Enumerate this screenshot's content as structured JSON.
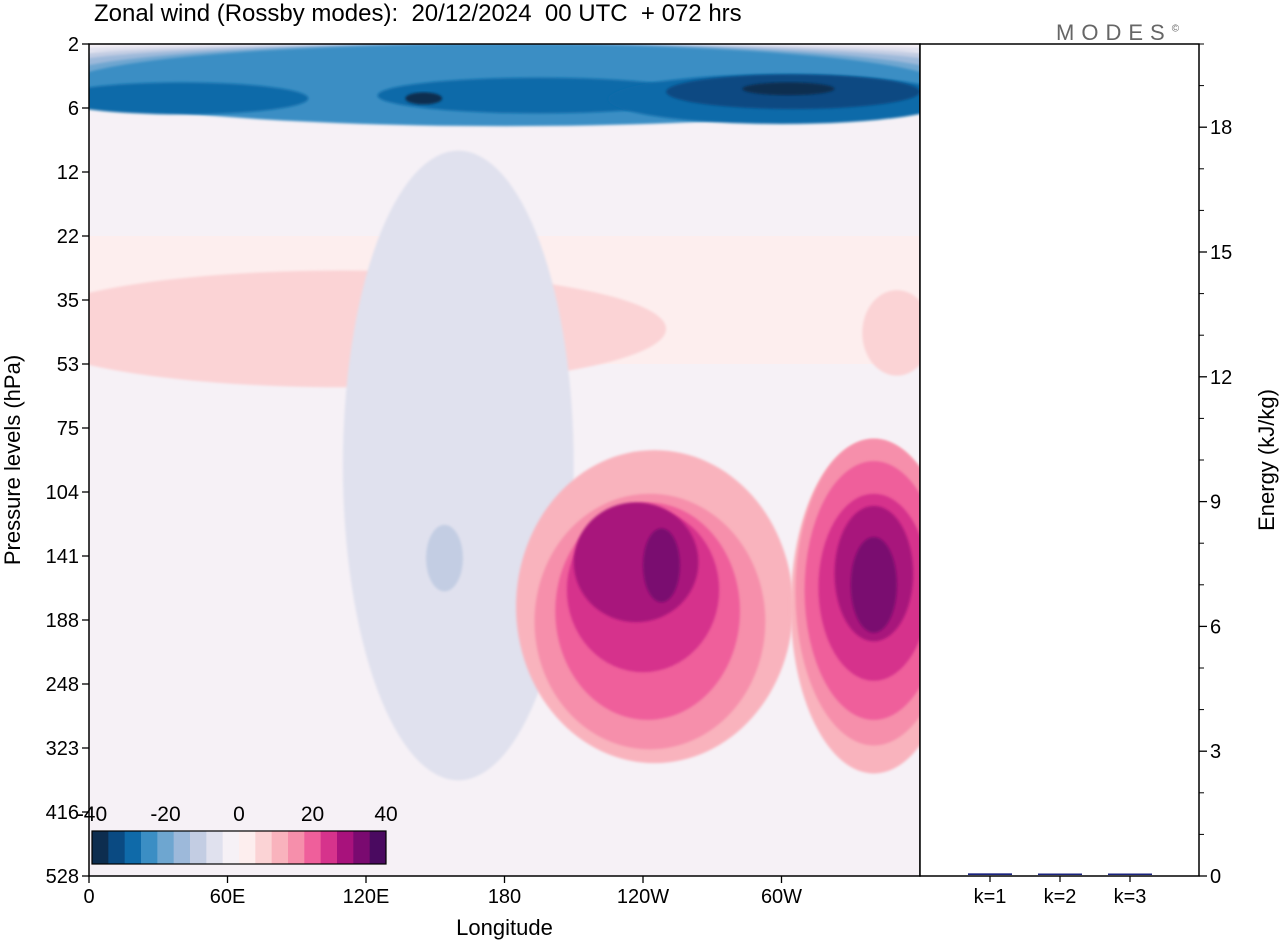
{
  "title": "Zonal wind (Rossby modes):  20/12/2024  00 UTC  + 072 hrs",
  "logo": "MODES",
  "logo_mark": "©",
  "chart_data": [
    {
      "type": "heatmap",
      "xlabel": "Longitude",
      "ylabel": "Pressure levels (hPa)",
      "x_ticks": [
        "0",
        "60E",
        "120E",
        "180",
        "120W",
        "60W"
      ],
      "x_tick_degrees_east": [
        0,
        60,
        120,
        180,
        240,
        300
      ],
      "x_range_degrees_east": [
        0,
        360
      ],
      "y_ticks": [
        "2",
        "6",
        "12",
        "22",
        "35",
        "53",
        "75",
        "104",
        "141",
        "188",
        "248",
        "323",
        "416",
        "528"
      ],
      "y_ticks_reversed": true,
      "colorbar": {
        "tick_labels": [
          "-40",
          "-20",
          "0",
          "20",
          "40"
        ],
        "min": -40,
        "max": 40,
        "step": 5,
        "colors": [
          "#0d2d4f",
          "#0a4a82",
          "#0f6aa9",
          "#3b8ec4",
          "#6ea6d0",
          "#9db9da",
          "#c3cde3",
          "#e0e1ee",
          "#f6f1f6",
          "#fdeeee",
          "#fbd3d5",
          "#f9b3bd",
          "#f68fab",
          "#ef5f9b",
          "#d6338c",
          "#a8127c",
          "#7a0a70",
          "#4a0a60"
        ]
      },
      "contour_regions": [
        {
          "level": -5,
          "comment_free": true,
          "lon": 180,
          "lev": 2.3,
          "rx": 190,
          "ry": 0.4
        },
        {
          "level": -10,
          "lon": 180,
          "lev": 2.6,
          "rx": 190,
          "ry": 1.0
        },
        {
          "level": -15,
          "lon": 180,
          "lev": 3.0,
          "rx": 190,
          "ry": 1.6
        },
        {
          "level": -20,
          "lon": 180,
          "lev": 3.6,
          "rx": 190,
          "ry": 2.3
        },
        {
          "level": -25,
          "lon": 180,
          "lev": 4.6,
          "rx": 190,
          "ry": 3.1
        },
        {
          "level": -30,
          "lon": 40,
          "lev": 5.5,
          "rx": 55,
          "ry": 1.1
        },
        {
          "level": -30,
          "lon": 195,
          "lev": 5.3,
          "rx": 70,
          "ry": 1.2
        },
        {
          "level": -30,
          "lon": 300,
          "lev": 5.7,
          "rx": 75,
          "ry": 1.8
        },
        {
          "level": -35,
          "lon": 305,
          "lev": 5.0,
          "rx": 55,
          "ry": 1.1
        },
        {
          "level": -40,
          "lon": 145,
          "lev": 5.4,
          "rx": 8,
          "ry": 0.3
        },
        {
          "level": -40,
          "lon": 303,
          "lev": 4.8,
          "rx": 20,
          "ry": 0.4
        },
        {
          "level": 5,
          "lon": 110,
          "lev": 45,
          "rx": 140,
          "ry": 16
        },
        {
          "level": 5,
          "lon": 350,
          "lev": 45,
          "rx": 15,
          "ry": 12
        },
        {
          "level": 10,
          "lon": 245,
          "lev": 215,
          "rx": 60,
          "ry": 130
        },
        {
          "level": 10,
          "lon": 340,
          "lev": 220,
          "rx": 36,
          "ry": 140
        },
        {
          "level": 15,
          "lon": 243,
          "lev": 215,
          "rx": 50,
          "ry": 110
        },
        {
          "level": 15,
          "lon": 340,
          "lev": 200,
          "rx": 34,
          "ry": 120
        },
        {
          "level": 20,
          "lon": 242,
          "lev": 200,
          "rx": 40,
          "ry": 90
        },
        {
          "level": 20,
          "lon": 340,
          "lev": 190,
          "rx": 30,
          "ry": 100
        },
        {
          "level": 25,
          "lon": 240,
          "lev": 175,
          "rx": 33,
          "ry": 62
        },
        {
          "level": 25,
          "lon": 340,
          "lev": 175,
          "rx": 24,
          "ry": 70
        },
        {
          "level": 30,
          "lon": 237,
          "lev": 150,
          "rx": 27,
          "ry": 40
        },
        {
          "level": 30,
          "lon": 340,
          "lev": 160,
          "rx": 17,
          "ry": 48
        },
        {
          "level": 35,
          "lon": 248,
          "lev": 150,
          "rx": 8,
          "ry": 25
        },
        {
          "level": 35,
          "lon": 340,
          "lev": 165,
          "rx": 10,
          "ry": 35
        },
        {
          "level": -5,
          "lon": 160,
          "lev": 190,
          "rx": 50,
          "ry": 180
        },
        {
          "level": -10,
          "lon": 154,
          "lev": 145,
          "rx": 8,
          "ry": 22
        }
      ]
    },
    {
      "type": "bar",
      "categories": [
        "k=1",
        "k=2",
        "k=3"
      ],
      "values": [
        0.04,
        0.02,
        0.01
      ],
      "ylabel": "Energy (kJ/kg)",
      "ylim": [
        0,
        20
      ],
      "y_ticks": [
        "0",
        "3",
        "6",
        "9",
        "12",
        "15",
        "18"
      ],
      "bar_color": "#1a237e"
    }
  ]
}
